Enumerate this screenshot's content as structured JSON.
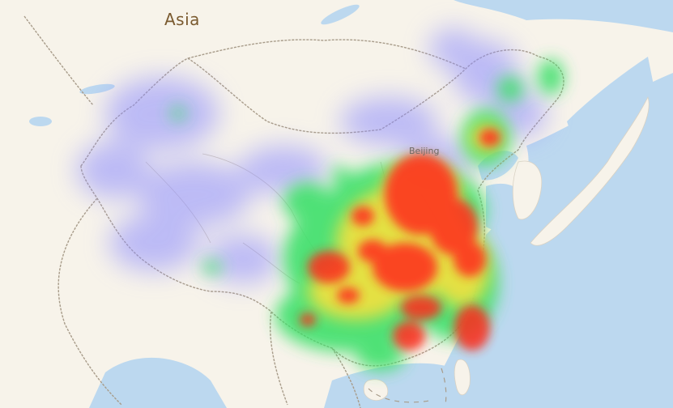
{
  "map": {
    "labels": {
      "continent": "Asia",
      "city": "Beijing"
    },
    "colors": {
      "land": "#f7f3ea",
      "water": "#bcd8ef",
      "border": "#a89c8a",
      "heat_low": "#8c8cff",
      "heat_mid": "#3ee06a",
      "heat_high_mid": "#ffe03a",
      "heat_high": "#ff2a1a"
    }
  }
}
